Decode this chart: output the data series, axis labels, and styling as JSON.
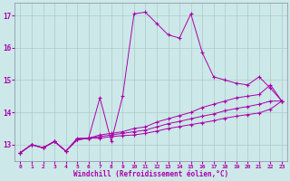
{
  "background_color": "#cce8e8",
  "grid_color": "#aacccc",
  "line_color": "#aa00aa",
  "xlabel": "Windchill (Refroidissement éolien,°C)",
  "x": [
    0,
    1,
    2,
    3,
    4,
    5,
    6,
    7,
    8,
    9,
    10,
    11,
    12,
    13,
    14,
    15,
    16,
    17,
    18,
    19,
    20,
    21,
    22,
    23
  ],
  "series1": [
    12.75,
    13.0,
    12.9,
    13.1,
    12.8,
    13.2,
    13.2,
    14.45,
    13.1,
    14.5,
    17.05,
    17.1,
    16.75,
    16.4,
    16.3,
    17.05,
    15.85,
    15.1,
    15.0,
    14.9,
    14.85,
    15.1,
    14.75,
    14.35
  ],
  "series2": [
    12.75,
    13.0,
    12.9,
    13.1,
    12.8,
    13.15,
    13.2,
    13.3,
    13.35,
    13.4,
    13.5,
    13.55,
    13.7,
    13.8,
    13.9,
    14.0,
    14.15,
    14.25,
    14.35,
    14.45,
    14.5,
    14.55,
    14.85,
    14.35
  ],
  "series3": [
    12.75,
    13.0,
    12.9,
    13.1,
    12.8,
    13.15,
    13.2,
    13.25,
    13.3,
    13.35,
    13.4,
    13.45,
    13.55,
    13.65,
    13.72,
    13.8,
    13.88,
    13.95,
    14.05,
    14.12,
    14.18,
    14.25,
    14.35,
    14.35
  ],
  "series4": [
    12.75,
    13.0,
    12.9,
    13.1,
    12.8,
    13.15,
    13.2,
    13.2,
    13.25,
    13.28,
    13.3,
    13.35,
    13.42,
    13.5,
    13.56,
    13.62,
    13.68,
    13.74,
    13.82,
    13.88,
    13.93,
    13.98,
    14.1,
    14.35
  ],
  "ylim": [
    12.5,
    17.4
  ],
  "yticks": [
    13,
    14,
    15,
    16,
    17
  ],
  "xlim": [
    -0.5,
    23.5
  ]
}
